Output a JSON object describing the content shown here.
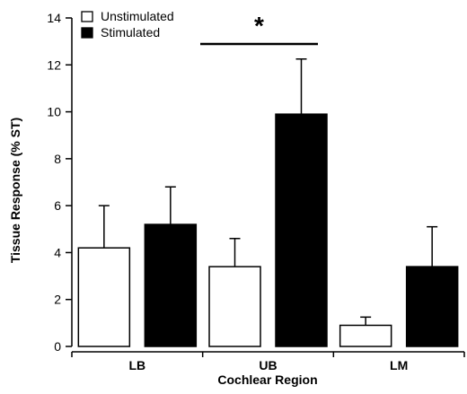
{
  "chart_data": {
    "type": "bar",
    "title": "",
    "xlabel": "Cochlear Region",
    "ylabel": "Tissue Response (% ST)",
    "categories": [
      "LB",
      "UB",
      "LM"
    ],
    "series": [
      {
        "name": "Unstimulated",
        "color": "#ffffff",
        "values": [
          4.2,
          3.4,
          0.9
        ],
        "errors": [
          1.8,
          1.2,
          0.35
        ]
      },
      {
        "name": "Stimulated",
        "color": "#000000",
        "values": [
          5.2,
          9.9,
          3.4
        ],
        "errors": [
          1.6,
          2.35,
          1.7
        ]
      }
    ],
    "ylim": [
      0,
      14
    ],
    "yticks": [
      0,
      2,
      4,
      6,
      8,
      10,
      12,
      14
    ],
    "legend_position": "top-left",
    "grid": false,
    "significance": {
      "category": "UB",
      "label": "*"
    }
  }
}
